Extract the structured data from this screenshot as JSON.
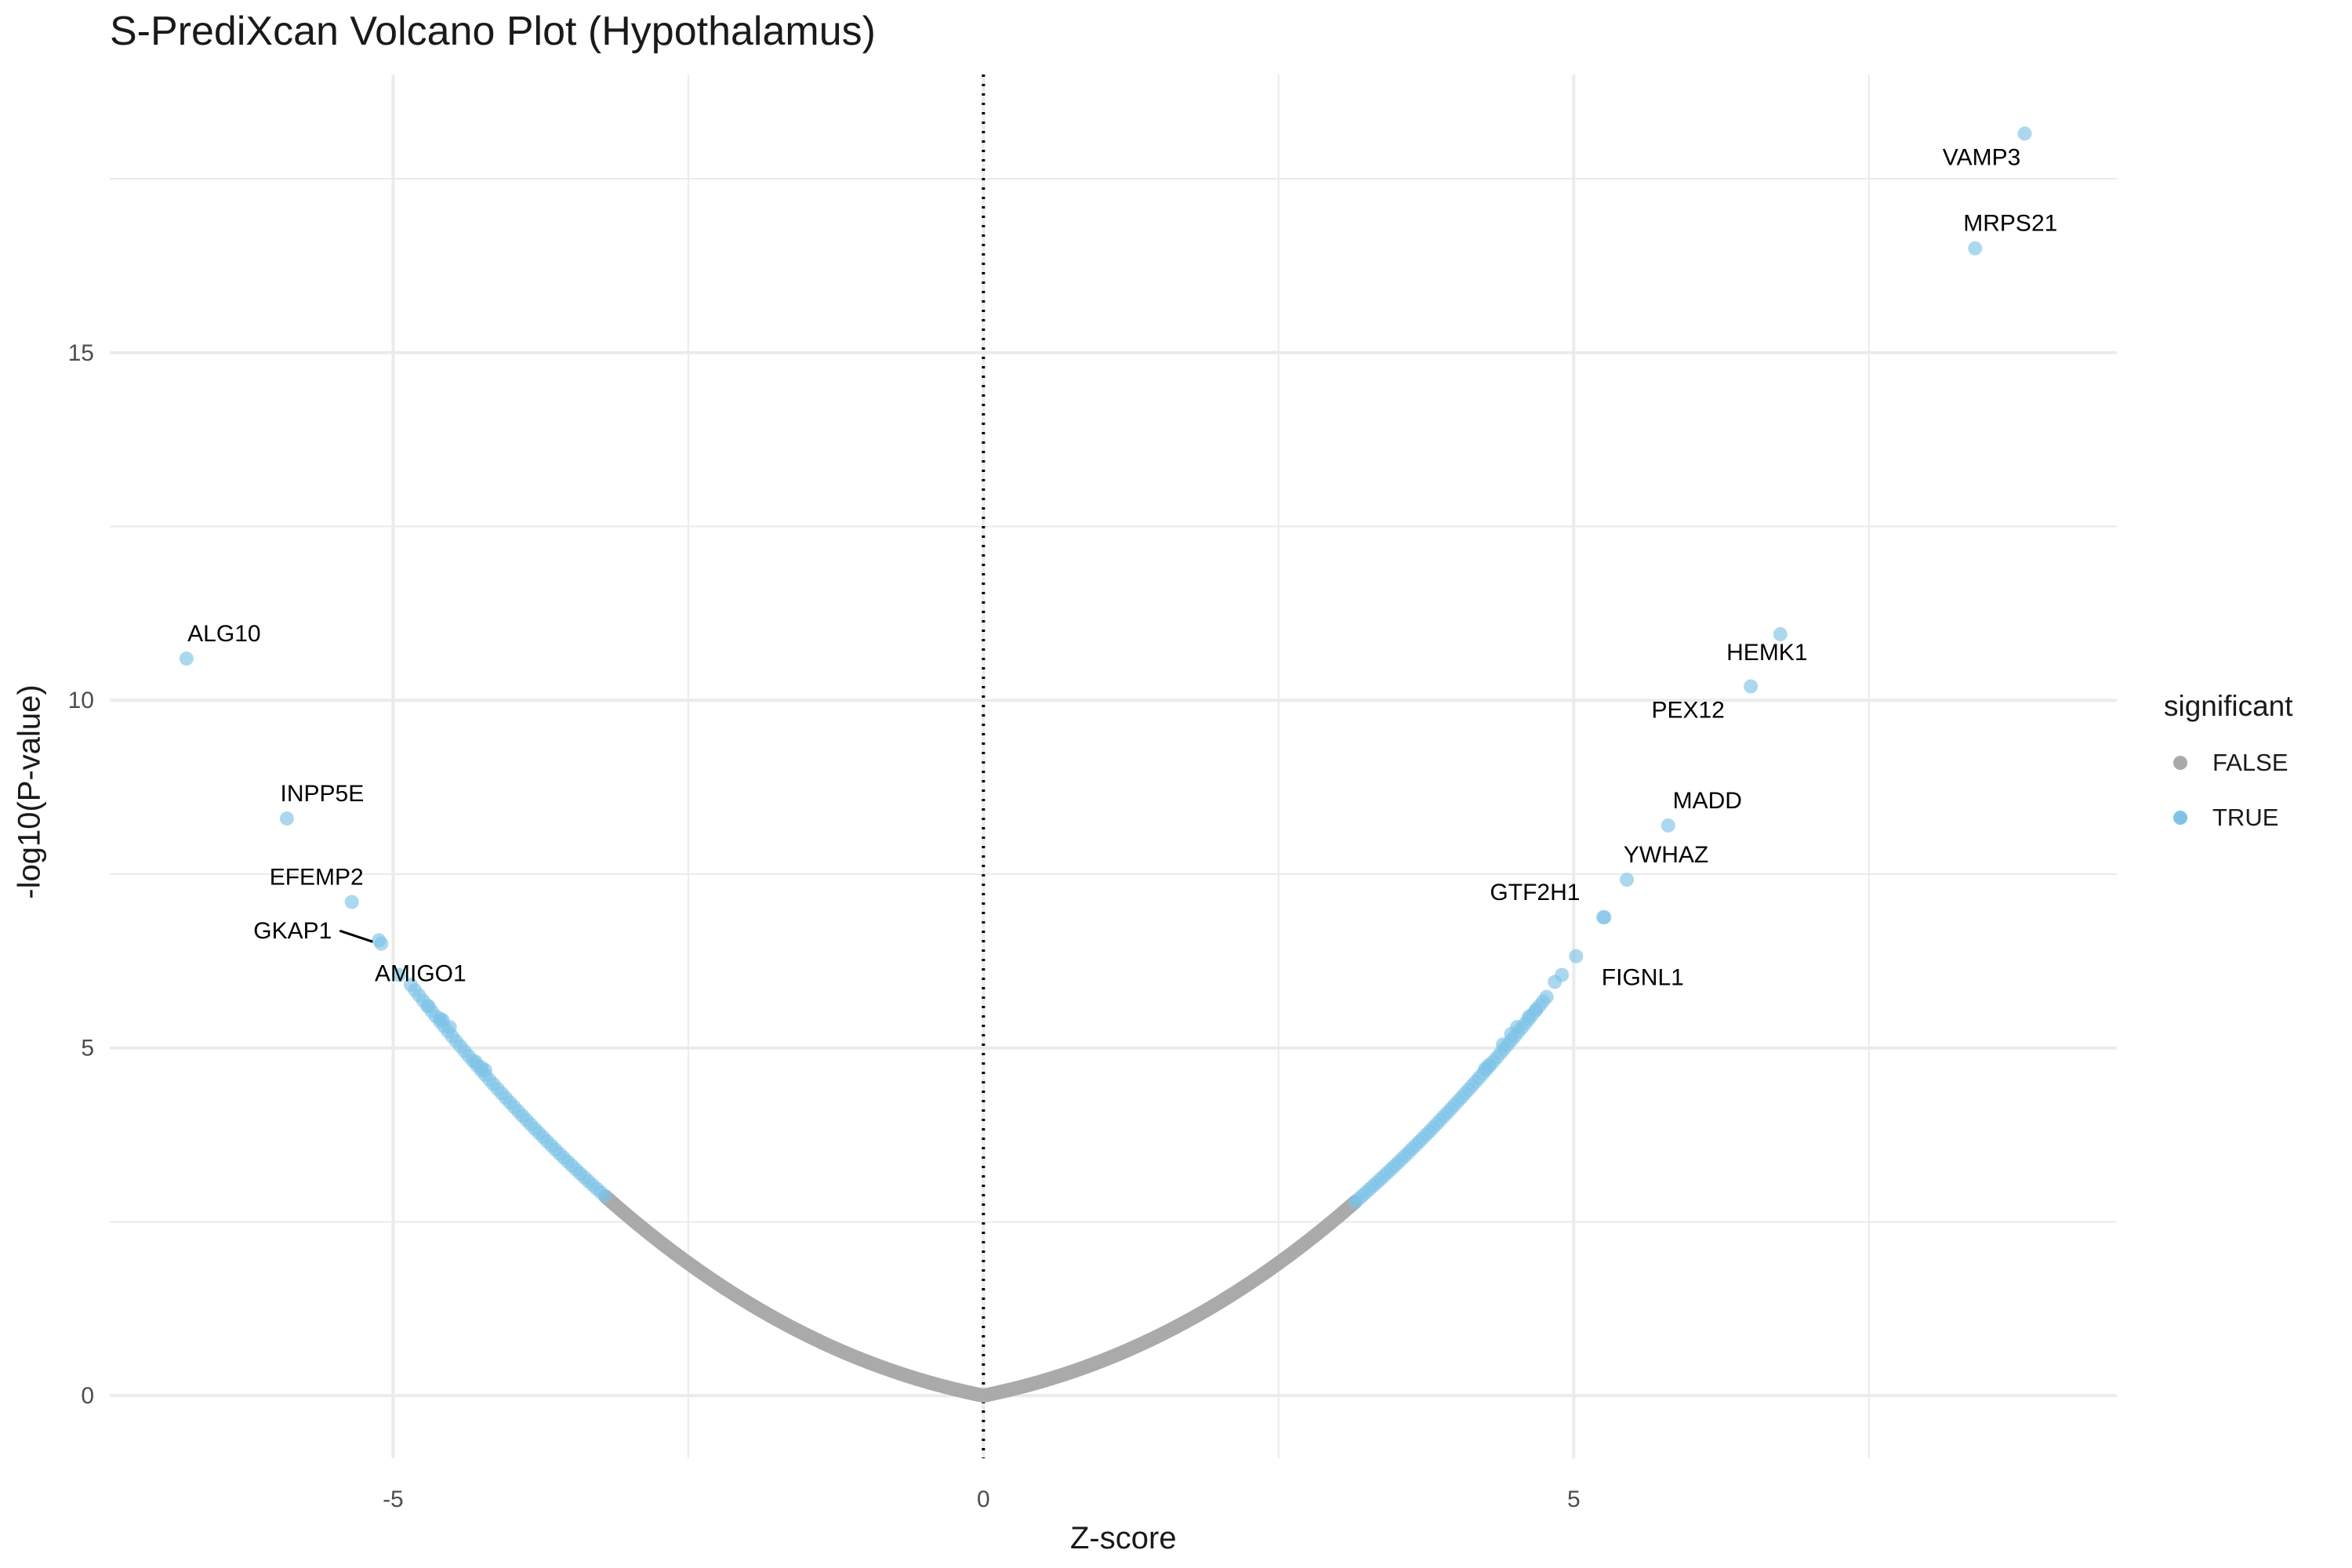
{
  "chart_data": {
    "type": "scatter",
    "title": "S-PrediXcan Volcano Plot (Hypothalamus)",
    "xlabel": "Z-score",
    "ylabel": "-log10(P-value)",
    "xlim": [
      -7.4,
      9.6
    ],
    "ylim": [
      -0.9,
      19.0
    ],
    "x_ticks": [
      -5,
      0,
      5
    ],
    "y_ticks": [
      0,
      5,
      10,
      15
    ],
    "grid": true,
    "reference_line": {
      "x": 0,
      "style": "dotted"
    },
    "legend": {
      "title": "significant",
      "position": "right",
      "entries": [
        "FALSE",
        "TRUE"
      ]
    },
    "colors": {
      "FALSE": "#aaaaaa",
      "TRUE": "#7ec3e6"
    },
    "significance_threshold_abs_z": 3.2,
    "curve": {
      "description_note": "",
      "false_x_range": [
        -3.2,
        3.15
      ],
      "true_left_x_range": [
        -4.85,
        -3.2
      ],
      "true_right_x_range": [
        3.15,
        4.8
      ]
    },
    "labeled_points": [
      {
        "label": "VAMP3",
        "x": 8.82,
        "y": 18.15
      },
      {
        "label": "MRPS21",
        "x": 8.4,
        "y": 16.5
      },
      {
        "label": "HEMK1",
        "x": 6.75,
        "y": 10.95
      },
      {
        "label": "PEX12",
        "x": 6.5,
        "y": 10.2
      },
      {
        "label": "MADD",
        "x": 5.8,
        "y": 8.2
      },
      {
        "label": "YWHAZ",
        "x": 5.45,
        "y": 7.42
      },
      {
        "label": "GTF2H1",
        "x": 5.25,
        "y": 6.88
      },
      {
        "label": "FIGNL1",
        "x": 5.02,
        "y": 6.32
      },
      {
        "label": "ALG10",
        "x": -6.75,
        "y": 10.6
      },
      {
        "label": "INPP5E",
        "x": -5.9,
        "y": 8.3
      },
      {
        "label": "EFEMP2",
        "x": -5.35,
        "y": 7.1
      },
      {
        "label": "GKAP1",
        "x": -5.12,
        "y": 6.55
      },
      {
        "label": "AMIGO1",
        "x": -5.1,
        "y": 6.5
      }
    ],
    "extra_points": [
      {
        "x": -4.95,
        "y": 6.05
      },
      {
        "x": -4.7,
        "y": 5.6
      },
      {
        "x": -4.6,
        "y": 5.42
      },
      {
        "x": -4.58,
        "y": 5.4
      },
      {
        "x": -4.52,
        "y": 5.3
      },
      {
        "x": -4.3,
        "y": 4.8
      },
      {
        "x": -4.25,
        "y": 4.72
      },
      {
        "x": -4.22,
        "y": 4.68
      },
      {
        "x": 5.26,
        "y": 6.88
      },
      {
        "x": 4.9,
        "y": 6.05
      },
      {
        "x": 4.84,
        "y": 5.95
      },
      {
        "x": 4.68,
        "y": 5.55
      },
      {
        "x": 4.62,
        "y": 5.45
      },
      {
        "x": 4.52,
        "y": 5.3
      },
      {
        "x": 4.47,
        "y": 5.2
      },
      {
        "x": 4.4,
        "y": 5.05
      },
      {
        "x": 4.28,
        "y": 4.75
      },
      {
        "x": 4.25,
        "y": 4.7
      }
    ]
  }
}
